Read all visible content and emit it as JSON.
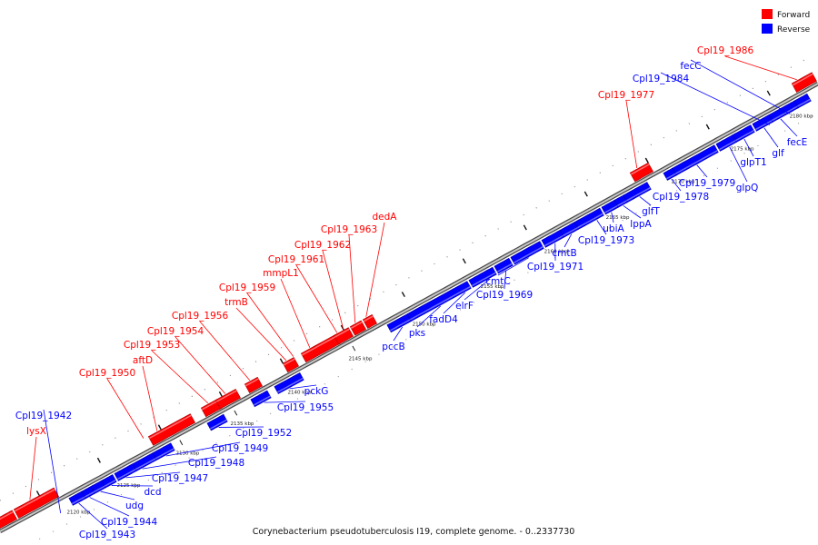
{
  "legend": {
    "forward": {
      "label": "Forward",
      "color": "#ff0000"
    },
    "reverse": {
      "label": "Reverse",
      "color": "#0000ff"
    }
  },
  "caption": "Corynebacterium pseudotuberculosis I19, complete genome. - 0..2337730",
  "ticks": [
    "2120 kbp",
    "2125 kbp",
    "2130 kbp",
    "2135 kbp",
    "2140 kbp",
    "2145 kbp",
    "2150 kbp",
    "2155 kbp",
    "2160 kbp",
    "2165 kbp",
    "2170 kbp",
    "2175 kbp",
    "2180 kbp"
  ],
  "forward_labels": [
    "lysX",
    "Cpl19_1950",
    "aftD",
    "Cpl19_1953",
    "Cpl19_1954",
    "Cpl19_1956",
    "trmB",
    "Cpl19_1959",
    "mmpL1",
    "Cpl19_1961",
    "Cpl19_1962",
    "Cpl19_1963",
    "dedA",
    "Cpl19_1977",
    "Cpl19_1986"
  ],
  "reverse_labels": [
    "Cpl19_1942",
    "Cpl19_1943",
    "Cpl19_1944",
    "udg",
    "dcd",
    "Cpl19_1947",
    "Cpl19_1948",
    "Cpl19_1949",
    "Cpl19_1952",
    "Cpl19_1955",
    "pckG",
    "pccB",
    "pks",
    "fadD4",
    "elrF",
    "Cpl19_1969",
    "cmtC",
    "Cpl19_1971",
    "cmtB",
    "Cpl19_1973",
    "ubiA",
    "lppA",
    "glfT",
    "Cpl19_1978",
    "Cpl19_1979",
    "glpQ",
    "glpT1",
    "glf",
    "fecE",
    "Cpl19_1984",
    "fecC"
  ]
}
